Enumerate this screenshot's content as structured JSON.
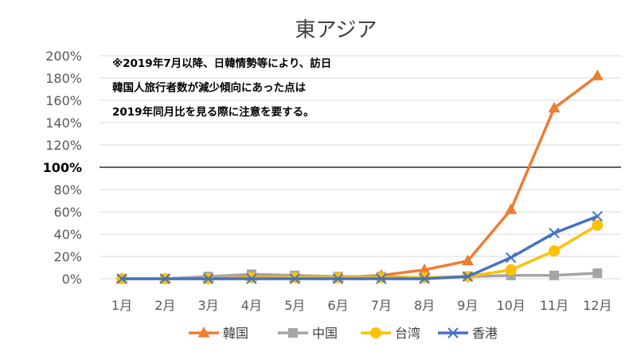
{
  "chart_data": {
    "type": "line",
    "title": "東アジア",
    "categories": [
      "1月",
      "2月",
      "3月",
      "4月",
      "5月",
      "6月",
      "7月",
      "8月",
      "9月",
      "10月",
      "11月",
      "12月"
    ],
    "ylim": [
      0,
      200
    ],
    "y_ticks": [
      "0%",
      "20%",
      "40%",
      "60%",
      "80%",
      "100%",
      "120%",
      "140%",
      "160%",
      "180%",
      "200%"
    ],
    "y_unit": "%",
    "grid": true,
    "reference_line": {
      "value": 100,
      "label": "100%"
    },
    "legend_position": "bottom",
    "annotation_lines": [
      "※2019年7月以降、日韓情勢等により、訪日",
      "韓国人旅行者数が減少傾向にあった点は",
      "2019年同月比を見る際に注意を要する。"
    ],
    "series": [
      {
        "name": "韓国",
        "marker": "triangle",
        "color": "#ED7D31",
        "values": [
          0,
          0,
          1,
          2,
          1,
          1,
          3,
          8,
          16,
          62,
          153,
          182
        ]
      },
      {
        "name": "中国",
        "marker": "square",
        "color": "#A5A5A5",
        "values": [
          0,
          0,
          2,
          4,
          3,
          2,
          2,
          1,
          2,
          3,
          3,
          5
        ]
      },
      {
        "name": "台湾",
        "marker": "circle",
        "color": "#FFC000",
        "values": [
          0,
          0,
          0,
          1,
          1,
          1,
          1,
          1,
          2,
          8,
          25,
          48
        ]
      },
      {
        "name": "香港",
        "marker": "x",
        "color": "#4472C4",
        "values": [
          0,
          0,
          0,
          0,
          0,
          0,
          0,
          0,
          2,
          19,
          41,
          56
        ]
      }
    ]
  }
}
